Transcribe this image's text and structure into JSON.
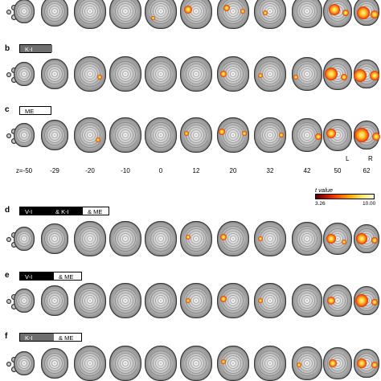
{
  "panels": [
    {
      "letter": "",
      "label_segments": []
    },
    {
      "letter": "b",
      "label_segments": [
        {
          "text": "K-I",
          "style": "gray"
        }
      ]
    },
    {
      "letter": "c",
      "label_segments": [
        {
          "text": "ME",
          "style": "white"
        }
      ]
    },
    {
      "letter": "d",
      "label_segments": [
        {
          "text": "V-I",
          "style": "black"
        },
        {
          "text": "& K-I",
          "style": "gray"
        },
        {
          "text": "& ME",
          "style": "white"
        }
      ]
    },
    {
      "letter": "e",
      "label_segments": [
        {
          "text": "V-I",
          "style": "black"
        },
        {
          "text": "& ME",
          "style": "white"
        }
      ]
    },
    {
      "letter": "f",
      "label_segments": [
        {
          "text": "K-I",
          "style": "gray"
        },
        {
          "text": "& ME",
          "style": "white"
        }
      ]
    }
  ],
  "z_labels": [
    "z=-50",
    "-29",
    "-20",
    "-10",
    "0",
    "12",
    "20",
    "32",
    "42",
    "50",
    "62"
  ],
  "orientation": {
    "left": "L",
    "right": "R"
  },
  "colorbar": {
    "title": "t value",
    "min": "3.26",
    "max": "10.00",
    "colors": [
      "#5a0000",
      "#c81400",
      "#ff5a00",
      "#ffb000",
      "#ffe870",
      "#fffce0"
    ]
  }
}
